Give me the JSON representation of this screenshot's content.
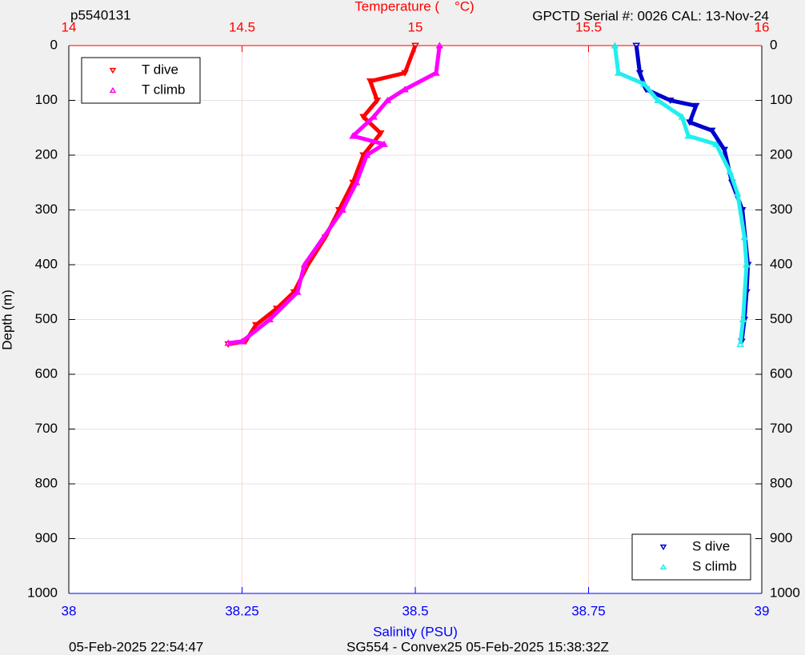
{
  "chart_data": {
    "type": "scatter",
    "title_left": "p5540131",
    "title_right": "GPCTD Serial #: 0026 CAL: 13-Nov-24",
    "x2label": "Temperature (    °C)",
    "xlabel": "Salinity (PSU)",
    "ylabel": "Depth (m)",
    "footer_left": "05-Feb-2025 22:54:47",
    "footer_center": "SG554 - Convex25 05-Feb-2025 15:38:32Z",
    "xlim": [
      38,
      39
    ],
    "xticks": [
      38,
      38.25,
      38.5,
      38.75,
      39
    ],
    "x2lim": [
      14,
      16
    ],
    "x2ticks": [
      14,
      14.5,
      15,
      15.5,
      16
    ],
    "ylim": [
      1000,
      0
    ],
    "yticks": [
      0,
      100,
      200,
      300,
      400,
      500,
      600,
      700,
      800,
      900,
      1000
    ],
    "grid": true,
    "legend": "upper left",
    "legend2": "lower right",
    "series": [
      {
        "name": "T dive",
        "color": "#ff0000",
        "marker": "v",
        "axis": "x2",
        "x": [
          15.0,
          14.97,
          14.87,
          14.89,
          14.85,
          14.9,
          14.85,
          14.82,
          14.78,
          14.74,
          14.69,
          14.65,
          14.6,
          14.54,
          14.51,
          14.46
        ],
        "y": [
          0,
          50,
          65,
          100,
          130,
          160,
          200,
          250,
          300,
          350,
          400,
          450,
          480,
          510,
          540,
          545
        ]
      },
      {
        "name": "T climb",
        "color": "#ff00ff",
        "marker": "^",
        "axis": "x2",
        "x": [
          15.07,
          15.06,
          14.97,
          14.92,
          14.88,
          14.82,
          14.91,
          14.86,
          14.83,
          14.79,
          14.68,
          14.66,
          14.58,
          14.5,
          14.46
        ],
        "y": [
          0,
          50,
          80,
          100,
          130,
          165,
          180,
          200,
          250,
          300,
          400,
          450,
          500,
          540,
          543
        ]
      },
      {
        "name": "S dive",
        "color": "#0000cd",
        "marker": "v",
        "axis": "x",
        "x": [
          38.819,
          38.824,
          38.833,
          38.868,
          38.905,
          38.896,
          38.928,
          38.946,
          38.957,
          38.972,
          38.98,
          38.978,
          38.975,
          38.971
        ],
        "y": [
          0,
          50,
          80,
          100,
          110,
          140,
          155,
          190,
          250,
          300,
          400,
          450,
          500,
          540
        ]
      },
      {
        "name": "S climb",
        "color": "#22eeee",
        "marker": "^",
        "axis": "x",
        "x": [
          38.788,
          38.793,
          38.83,
          38.85,
          38.885,
          38.894,
          38.934,
          38.954,
          38.965,
          38.975,
          38.978,
          38.973,
          38.969
        ],
        "y": [
          0,
          50,
          70,
          100,
          130,
          165,
          180,
          230,
          270,
          350,
          400,
          500,
          545
        ]
      }
    ]
  }
}
